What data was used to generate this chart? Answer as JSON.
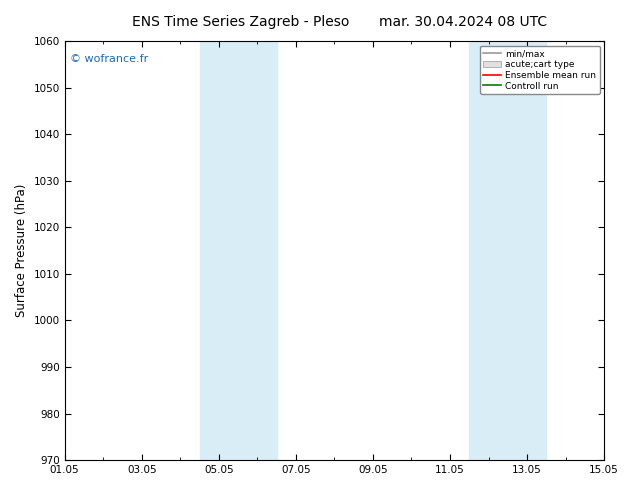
{
  "title": "ENS Time Series Zagreb - Pleso",
  "title2": "mar. 30.04.2024 08 UTC",
  "ylabel": "Surface Pressure (hPa)",
  "ylim": [
    970,
    1060
  ],
  "yticks": [
    970,
    980,
    990,
    1000,
    1010,
    1020,
    1030,
    1040,
    1050,
    1060
  ],
  "xlim_days": [
    0,
    14
  ],
  "xtick_labels": [
    "01.05",
    "03.05",
    "05.05",
    "07.05",
    "09.05",
    "11.05",
    "13.05",
    "15.05"
  ],
  "xtick_positions": [
    0,
    2,
    4,
    6,
    8,
    10,
    12,
    14
  ],
  "shade_bands": [
    {
      "xmin": 3.5,
      "xmax": 5.5,
      "color": "#d9edf7"
    },
    {
      "xmin": 10.5,
      "xmax": 12.5,
      "color": "#d9edf7"
    }
  ],
  "watermark": "© wofrance.fr",
  "watermark_color": "#1a6bb5",
  "bg_color": "#ffffff",
  "plot_bg_color": "#ffffff",
  "legend_entries": [
    "min/max",
    "acute;cart type",
    "Ensemble mean run",
    "Controll run"
  ],
  "legend_line_colors": [
    "#999999",
    "#cccccc",
    "#ff0000",
    "#008000"
  ],
  "title_fontsize": 10,
  "tick_fontsize": 7.5,
  "ylabel_fontsize": 8.5
}
